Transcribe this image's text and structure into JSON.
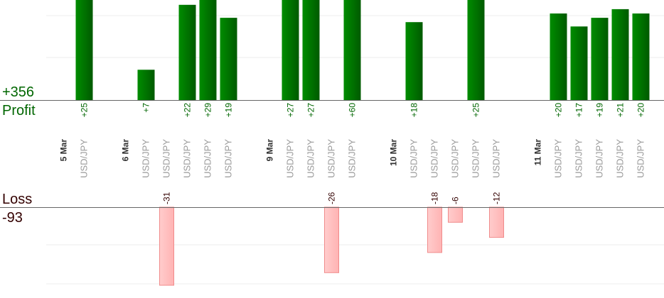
{
  "summary": {
    "profit_total": "+356",
    "profit_label": "Profit",
    "loss_label": "Loss",
    "loss_total": "-93"
  },
  "colors": {
    "profit_bar_dark": "#005a00",
    "profit_bar_light": "#008c00",
    "profit_text": "#006600",
    "loss_bar": "#ffb3b3",
    "loss_bar_border": "#f08c8c",
    "loss_text": "#330000",
    "date_text": "#333333",
    "pair_text": "#999999"
  },
  "chart_data": {
    "type": "bar",
    "grid": true,
    "columns": [
      {
        "date": "5 Mar"
      },
      {
        "pair": "USD/JPY",
        "value": 25,
        "label": "+25"
      },
      {
        "blank": true
      },
      {
        "date": "6 Mar"
      },
      {
        "pair": "USD/JPY",
        "value": 7,
        "label": "+7"
      },
      {
        "pair": "USD/JPY",
        "value": -31,
        "label": "-31"
      },
      {
        "pair": "USD/JPY",
        "value": 22,
        "label": "+22"
      },
      {
        "pair": "USD/JPY",
        "value": 29,
        "label": "+29"
      },
      {
        "pair": "USD/JPY",
        "value": 19,
        "label": "+19"
      },
      {
        "blank": true
      },
      {
        "date": "9 Mar"
      },
      {
        "pair": "USD/JPY",
        "value": 27,
        "label": "+27"
      },
      {
        "pair": "USD/JPY",
        "value": 27,
        "label": "+27"
      },
      {
        "pair": "USD/JPY",
        "value": -26,
        "label": "-26"
      },
      {
        "pair": "USD/JPY",
        "value": 60,
        "label": "+60"
      },
      {
        "blank": true
      },
      {
        "date": "10 Mar"
      },
      {
        "pair": "USD/JPY",
        "value": 18,
        "label": "+18"
      },
      {
        "pair": "USD/JPY",
        "value": -18,
        "label": "-18"
      },
      {
        "pair": "USD/JPY",
        "value": -6,
        "label": "-6"
      },
      {
        "pair": "USD/JPY",
        "value": 25,
        "label": "+25"
      },
      {
        "pair": "USD/JPY",
        "value": -12,
        "label": "-12"
      },
      {
        "blank": true
      },
      {
        "date": "11 Mar"
      },
      {
        "pair": "USD/JPY",
        "value": 20,
        "label": "+20"
      },
      {
        "pair": "USD/JPY",
        "value": 17,
        "label": "+17"
      },
      {
        "pair": "USD/JPY",
        "value": 19,
        "label": "+19"
      },
      {
        "pair": "USD/JPY",
        "value": 21,
        "label": "+21"
      },
      {
        "pair": "USD/JPY",
        "value": 20,
        "label": "+20"
      }
    ]
  }
}
